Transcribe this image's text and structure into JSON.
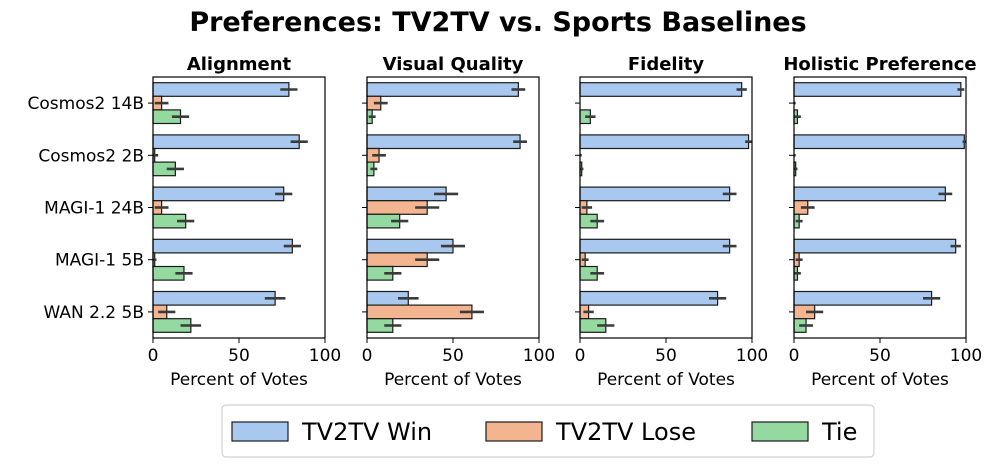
{
  "title": "Preferences: TV2TV vs. Sports Baselines",
  "colors": {
    "win": "#a9c8ef",
    "lose": "#f2b58f",
    "tie": "#94d9a0",
    "errorbar": "#3b3b3b",
    "edge": "#1a1a1a"
  },
  "chart_data": [
    {
      "type": "bar",
      "orientation": "horizontal",
      "title": "Alignment",
      "categories": [
        "Cosmos2 14B",
        "Cosmos2 2B",
        "MAGI-1 24B",
        "MAGI-1 5B",
        "WAN 2.2 5B"
      ],
      "xlabel": "Percent of Votes",
      "xlim": [
        0,
        100
      ],
      "xticks": [
        "0",
        "50",
        "100"
      ],
      "series": [
        {
          "name": "TV2TV Win",
          "values": [
            79,
            85,
            76,
            81,
            71
          ],
          "errors": [
            5,
            5,
            5,
            5,
            6
          ]
        },
        {
          "name": "TV2TV Lose",
          "values": [
            5,
            1,
            5,
            1,
            8
          ],
          "errors": [
            4,
            2,
            4,
            1,
            5
          ]
        },
        {
          "name": "Tie",
          "values": [
            16,
            13,
            19,
            18,
            22
          ],
          "errors": [
            5,
            5,
            5,
            5,
            6
          ]
        }
      ]
    },
    {
      "type": "bar",
      "orientation": "horizontal",
      "title": "Visual Quality",
      "categories": [
        "Cosmos2 14B",
        "Cosmos2 2B",
        "MAGI-1 24B",
        "MAGI-1 5B",
        "WAN 2.2 5B"
      ],
      "xlabel": "Percent of Votes",
      "xlim": [
        0,
        100
      ],
      "xticks": [
        "0",
        "50",
        "100"
      ],
      "series": [
        {
          "name": "TV2TV Win",
          "values": [
            88,
            89,
            46,
            50,
            24
          ],
          "errors": [
            4,
            4,
            7,
            7,
            6
          ]
        },
        {
          "name": "TV2TV Lose",
          "values": [
            8,
            7,
            35,
            35,
            61
          ],
          "errors": [
            4,
            4,
            7,
            7,
            7
          ]
        },
        {
          "name": "Tie",
          "values": [
            3,
            4,
            19,
            15,
            15
          ],
          "errors": [
            2,
            2,
            5,
            5,
            5
          ]
        }
      ]
    },
    {
      "type": "bar",
      "orientation": "horizontal",
      "title": "Fidelity",
      "categories": [
        "Cosmos2 14B",
        "Cosmos2 2B",
        "MAGI-1 24B",
        "MAGI-1 5B",
        "WAN 2.2 5B"
      ],
      "xlabel": "Percent of Votes",
      "xlim": [
        0,
        100
      ],
      "xticks": [
        "0",
        "50",
        "100"
      ],
      "series": [
        {
          "name": "TV2TV Win",
          "values": [
            94,
            98,
            87,
            87,
            80
          ],
          "errors": [
            3,
            2,
            4,
            4,
            5
          ]
        },
        {
          "name": "TV2TV Lose",
          "values": [
            0,
            0,
            4,
            3,
            5
          ],
          "errors": [
            0,
            1,
            3,
            2,
            3
          ]
        },
        {
          "name": "Tie",
          "values": [
            6,
            1,
            10,
            10,
            15
          ],
          "errors": [
            3,
            1,
            4,
            4,
            5
          ]
        }
      ]
    },
    {
      "type": "bar",
      "orientation": "horizontal",
      "title": "Holistic Preference",
      "categories": [
        "Cosmos2 14B",
        "Cosmos2 2B",
        "MAGI-1 24B",
        "MAGI-1 5B",
        "WAN 2.2 5B"
      ],
      "xlabel": "Percent of Votes",
      "xlim": [
        0,
        100
      ],
      "xticks": [
        "0",
        "50",
        "100"
      ],
      "series": [
        {
          "name": "TV2TV Win",
          "values": [
            97,
            99,
            88,
            94,
            80
          ],
          "errors": [
            2,
            1,
            4,
            3,
            5
          ]
        },
        {
          "name": "TV2TV Lose",
          "values": [
            0,
            0,
            8,
            3,
            12
          ],
          "errors": [
            1,
            1,
            4,
            2,
            5
          ]
        },
        {
          "name": "Tie",
          "values": [
            2,
            1,
            3,
            2,
            7
          ],
          "errors": [
            2,
            1,
            2,
            2,
            4
          ]
        }
      ]
    }
  ],
  "legend": [
    {
      "label": "TV2TV Win",
      "color_key": "win"
    },
    {
      "label": "TV2TV Lose",
      "color_key": "lose"
    },
    {
      "label": "Tie",
      "color_key": "tie"
    }
  ]
}
